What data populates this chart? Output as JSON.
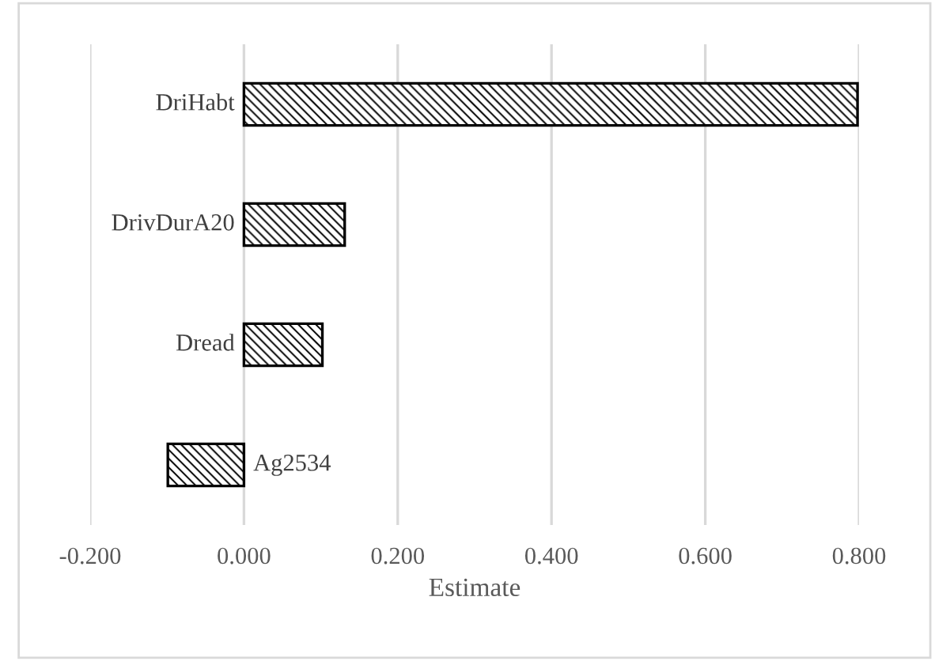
{
  "chart_data": {
    "type": "bar",
    "orientation": "horizontal",
    "xlabel": "Estimate",
    "categories": [
      "DriHabt",
      "DrivDurA20",
      "Dread",
      "Ag2534"
    ],
    "values": [
      0.798,
      0.131,
      0.102,
      -0.099
    ],
    "color": "#000000",
    "xlim": [
      -0.2,
      0.8
    ],
    "xticks": [
      {
        "value": -0.2,
        "label": "-0.200"
      },
      {
        "value": 0,
        "label": "0.000"
      },
      {
        "value": 0.2,
        "label": "0.200"
      },
      {
        "value": 0.4,
        "label": "0.400"
      },
      {
        "value": 0.6,
        "label": "0.600"
      },
      {
        "value": 0.8,
        "label": "0.800"
      }
    ],
    "grid": "x"
  }
}
